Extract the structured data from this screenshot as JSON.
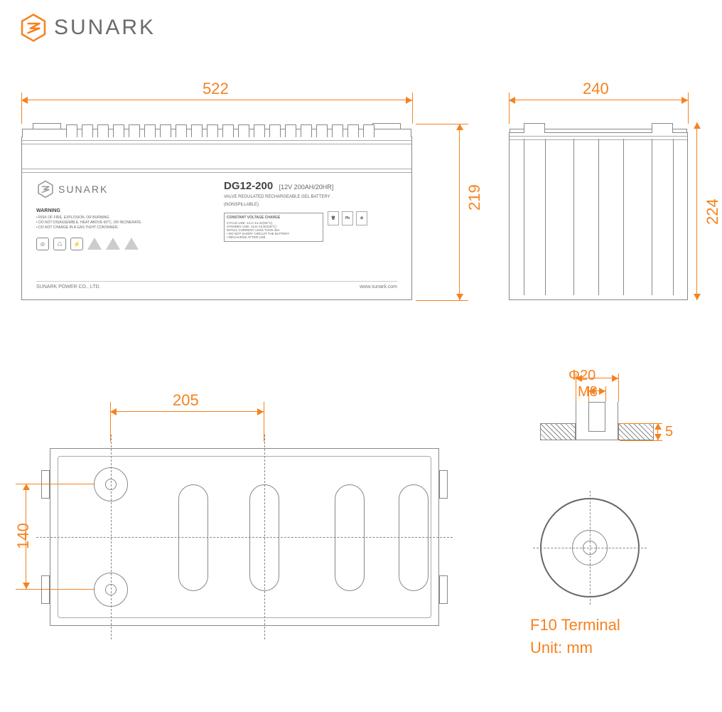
{
  "brand": {
    "name": "SUNARK",
    "logo_color": "#f58220",
    "text_color": "#6b6b6b"
  },
  "accent_color": "#f58220",
  "line_color": "#888888",
  "background_color": "#ffffff",
  "dimensions": {
    "length": "522",
    "width": "240",
    "height_front": "219",
    "height_side": "224",
    "terminal_spacing": "205",
    "terminal_row_spacing": "140",
    "bolt_dia": "Φ20",
    "thread": "M8",
    "depth": "5"
  },
  "product": {
    "model": "DG12-200",
    "spec": "[12V 200AH/20HR]",
    "description1": "VALVE REGULATED RECHARGEABLE GEL BATTERY",
    "description2": "(NONSPILLABLE)",
    "warning_title": "WARNING",
    "warnings": [
      "• RISK OF FIRE, EXPLOSION, OR BURNING.",
      "• DO NOT DISASSEMBLE, HEAT ABOVE 60°C, OR INCINERATE.",
      "• DO NOT CHARGE IN A GAS TIGHT CONTAINER."
    ],
    "charge_title": "CONSTANT VOLTAGE CHARGE",
    "charge_lines": [
      "CYCLE USE: 14.2–14.4V(25°C)",
      "STANDBY USE: 13.6–13.8V(25°C)",
      "INITIAL CURRENT: LESS THAN 40A",
      "• DO NOT SHORT CIRCUIT THE BATTERY",
      "• RECHARGE AFTER USE"
    ],
    "company": "SUNARK POWER CO., LTD.",
    "website": "www.sunark.com"
  },
  "terminal": {
    "name": "F10 Terminal",
    "unit_label": "Unit: mm"
  },
  "font_sizes": {
    "dimension_label": 22,
    "terminal_label": 22,
    "logo": 30
  }
}
